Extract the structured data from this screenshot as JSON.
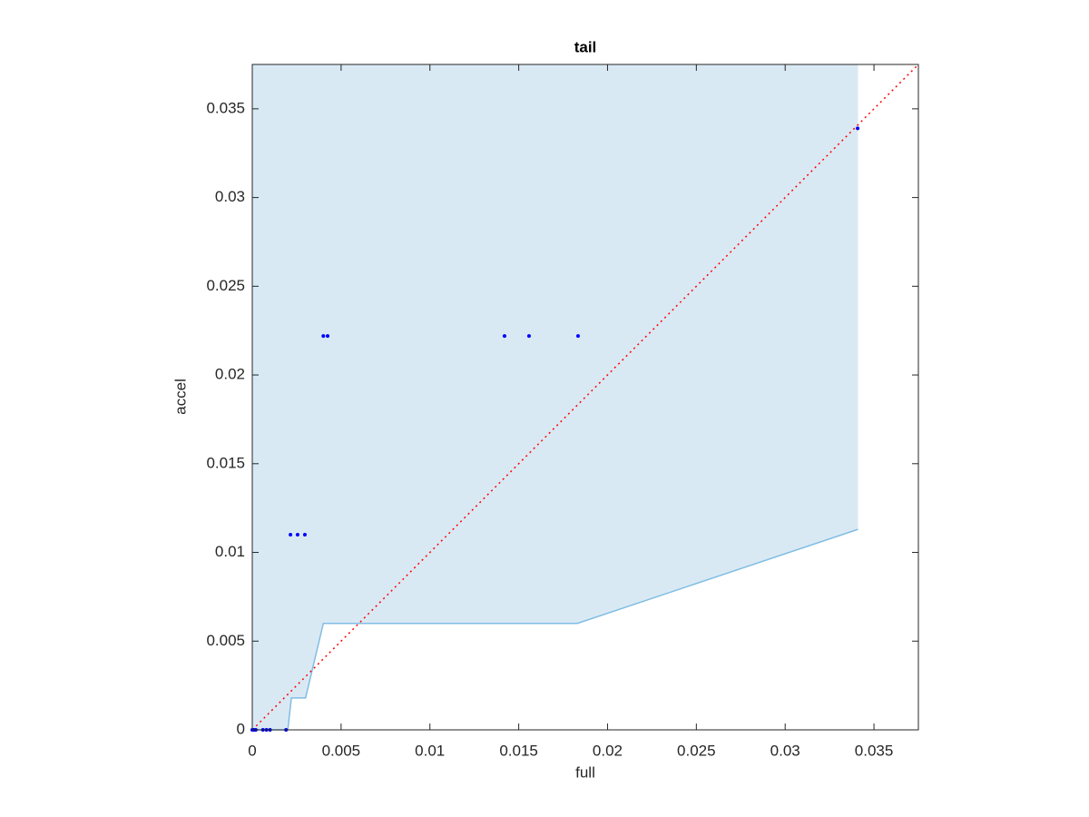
{
  "chart_data": {
    "type": "scatter",
    "title": "tail",
    "xlabel": "full",
    "ylabel": "accel",
    "xlim": [
      0,
      0.0375
    ],
    "ylim": [
      0,
      0.0375
    ],
    "xticks": [
      0,
      0.005,
      0.01,
      0.015,
      0.02,
      0.025,
      0.03,
      0.035
    ],
    "yticks": [
      0,
      0.005,
      0.01,
      0.015,
      0.02,
      0.025,
      0.03,
      0.035
    ],
    "series": [
      {
        "type": "area",
        "color": "#80bde3",
        "fill": "#d9e9f4",
        "x": [
          0,
          0.002,
          0.0022,
          0.003,
          0.004,
          0.0183,
          0.0341
        ],
        "values": [
          0,
          0,
          0.0018,
          0.0018,
          0.006,
          0.006,
          0.0113
        ]
      },
      {
        "type": "line",
        "color": "#ff0000",
        "dash": true,
        "x": [
          0,
          0.0375
        ],
        "values": [
          0,
          0.0375
        ]
      },
      {
        "type": "scatter",
        "color": "#0000ff",
        "x": [
          0,
          0.0001,
          0.0002,
          0.0006,
          0.0008,
          0.001,
          0.0019,
          0.00215,
          0.00255,
          0.00296,
          0.004,
          0.00424,
          0.0142,
          0.01558,
          0.01834,
          0.03408
        ],
        "values": [
          0,
          0,
          0,
          0,
          0,
          0,
          0,
          0.011,
          0.011,
          0.011,
          0.0222,
          0.0222,
          0.0222,
          0.0222,
          0.0222,
          0.0339
        ]
      }
    ]
  }
}
